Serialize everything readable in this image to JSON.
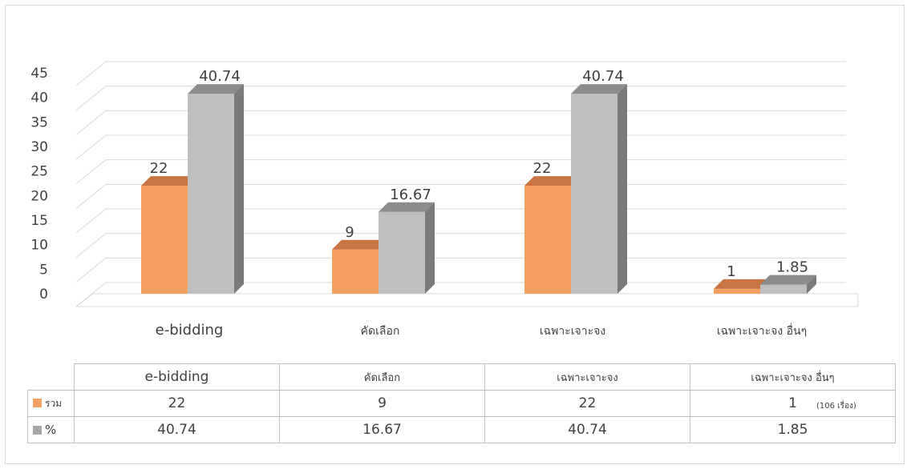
{
  "chart_data": {
    "type": "bar",
    "categories": [
      "e-bidding",
      "คัดเลือก",
      "เฉพาะเจาะจง",
      "เฉพาะเจาะจง อื่นๆ"
    ],
    "series": [
      {
        "name": "รวม",
        "values": [
          22,
          9,
          22,
          1
        ],
        "labels": [
          "22",
          "9",
          "22",
          "1"
        ]
      },
      {
        "name": "%",
        "values": [
          40.74,
          16.67,
          40.74,
          1.85
        ],
        "labels": [
          "40.74",
          "16.67",
          "40.74",
          "1.85"
        ]
      }
    ],
    "ylim": [
      0,
      45
    ],
    "yticks": [
      0,
      5,
      10,
      15,
      20,
      25,
      30,
      35,
      40,
      45
    ],
    "ytick_labels": [
      "0",
      "5",
      "10",
      "15",
      "20",
      "25",
      "30",
      "35",
      "40",
      "45"
    ],
    "grid": true,
    "style": "3d-column",
    "legend": "data-table-below"
  },
  "table": {
    "headers": [
      "e-bidding",
      "คัดเลือก",
      "เฉพาะเจาะจง",
      "เฉพาะเจาะจง อื่นๆ"
    ],
    "rows": [
      {
        "label": "รวม",
        "cells": [
          "22",
          "9",
          "22",
          "1"
        ]
      },
      {
        "label": "%",
        "cells": [
          "40.74",
          "16.67",
          "40.74",
          "1.85"
        ]
      }
    ],
    "note": "(106 เรื่อง)"
  },
  "colors": {
    "series_a": "#f4a062",
    "series_a_top": "#c87443",
    "series_a_side": "#d07e47",
    "series_b": "#bfbfbf",
    "series_b_top": "#8c8c8c",
    "series_b_side": "#7a7a7a",
    "grid": "#d9d9d9",
    "text": "#404040"
  }
}
